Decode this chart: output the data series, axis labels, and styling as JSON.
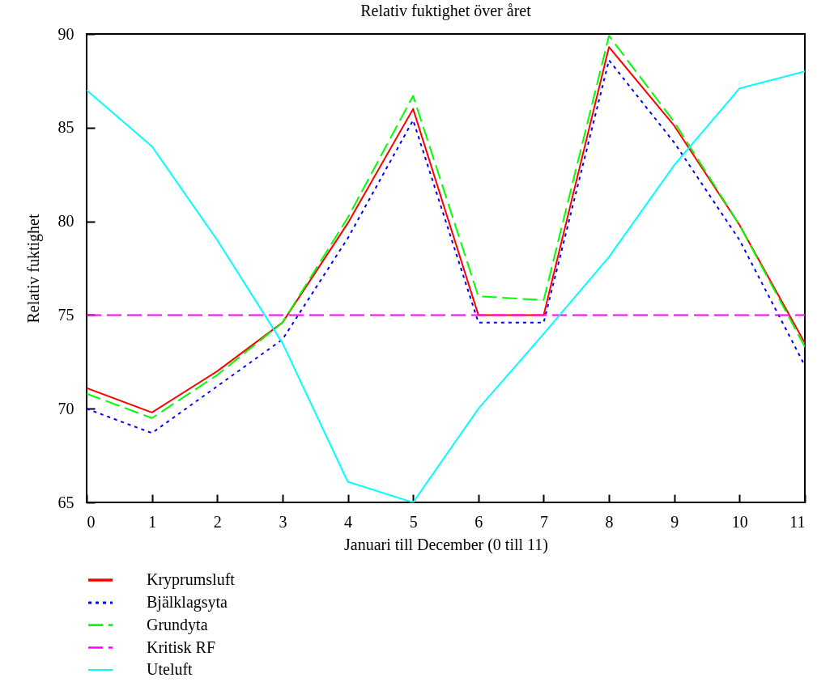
{
  "chart_data": {
    "type": "line",
    "title": "Relativ fuktighet över året",
    "xlabel": "Januari till December (0 till 11)",
    "ylabel": "Relativ fuktighet",
    "x": [
      0,
      1,
      2,
      3,
      4,
      5,
      6,
      7,
      8,
      9,
      10,
      11
    ],
    "series": [
      {
        "name": "Kryprumsluft",
        "color": "#ff0000",
        "line_style": "solid",
        "values": [
          71.1,
          69.8,
          72.0,
          74.6,
          79.9,
          86.0,
          75.0,
          75.0,
          89.3,
          85.1,
          79.8,
          73.5
        ]
      },
      {
        "name": "Bjälklagsyta",
        "color": "#0000ff",
        "line_style": "dotted",
        "values": [
          70.0,
          68.7,
          71.2,
          73.7,
          79.1,
          85.4,
          74.6,
          74.6,
          88.6,
          84.2,
          79.0,
          72.3
        ]
      },
      {
        "name": "Grundyta",
        "color": "#00ff00",
        "line_style": "dashed",
        "values": [
          70.8,
          69.5,
          71.8,
          74.6,
          80.2,
          86.7,
          76.0,
          75.8,
          89.9,
          85.3,
          79.8,
          73.3
        ]
      },
      {
        "name": "Kritisk RF",
        "color": "#ff00ff",
        "line_style": "dashed",
        "values": [
          75,
          75,
          75,
          75,
          75,
          75,
          75,
          75,
          75,
          75,
          75,
          75
        ]
      },
      {
        "name": "Uteluft",
        "color": "#00ffff",
        "line_style": "solid",
        "values": [
          87.0,
          84.0,
          79.0,
          73.5,
          66.1,
          65.0,
          70.0,
          74.0,
          78.1,
          83.0,
          87.1,
          88.0
        ]
      }
    ],
    "xlim": [
      0,
      11
    ],
    "xticks": [
      0,
      1,
      2,
      3,
      4,
      5,
      6,
      7,
      8,
      9,
      10,
      11
    ],
    "ylim": [
      65,
      90
    ],
    "yticks": [
      65,
      70,
      75,
      80,
      85,
      90
    ],
    "grid": false,
    "legend": "bottom left"
  }
}
